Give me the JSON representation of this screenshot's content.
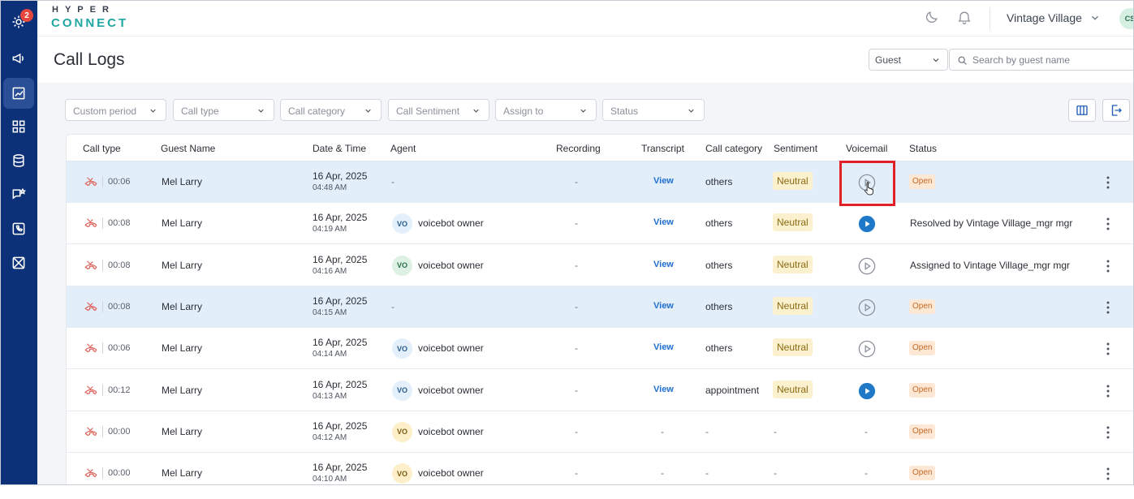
{
  "logo": {
    "top": "HYPER",
    "bottom": "CONNECT"
  },
  "sidebar": {
    "badge_count": "2",
    "items": [
      {
        "icon": "settings-cog-icon"
      },
      {
        "icon": "megaphone-icon"
      },
      {
        "icon": "reports-icon"
      },
      {
        "icon": "grid-icon"
      },
      {
        "icon": "database-icon"
      },
      {
        "icon": "chat-star-icon"
      },
      {
        "icon": "phone-icon"
      },
      {
        "icon": "mail-box-icon"
      }
    ]
  },
  "header": {
    "property": "Vintage Village",
    "user_initials": "CS"
  },
  "page": {
    "title": "Call Logs",
    "search_scope": "Guest",
    "search_placeholder": "Search by guest name"
  },
  "filters": [
    "Custom period",
    "Call type",
    "Call category",
    "Call Sentiment",
    "Assign to",
    "Status"
  ],
  "table": {
    "columns": [
      "Call type",
      "Guest Name",
      "Date & Time",
      "Agent",
      "Recording",
      "Transcript",
      "Call category",
      "Sentiment",
      "Voicemail",
      "Status"
    ],
    "rows": [
      {
        "duration": "00:06",
        "guest": "Mel Larry",
        "date": "16 Apr, 2025",
        "time": "04:48 AM",
        "agent_initials": "",
        "agent": "-",
        "recording": "-",
        "transcript": "View",
        "category": "others",
        "sentiment": "Neutral",
        "voicemail": "outline",
        "status": "Open",
        "status_type": "pill",
        "highlight": true
      },
      {
        "duration": "00:08",
        "guest": "Mel Larry",
        "date": "16 Apr, 2025",
        "time": "04:19 AM",
        "agent_initials": "VO",
        "agent": "voicebot owner",
        "agent_color": "blue",
        "recording": "-",
        "transcript": "View",
        "category": "others",
        "sentiment": "Neutral",
        "voicemail": "filled",
        "status": "Resolved by Vintage Village_mgr mgr",
        "status_type": "text",
        "highlight": false
      },
      {
        "duration": "00:08",
        "guest": "Mel Larry",
        "date": "16 Apr, 2025",
        "time": "04:16 AM",
        "agent_initials": "VO",
        "agent": "voicebot owner",
        "agent_color": "green",
        "recording": "-",
        "transcript": "View",
        "category": "others",
        "sentiment": "Neutral",
        "voicemail": "outline",
        "status": "Assigned to Vintage Village_mgr mgr",
        "status_type": "text",
        "highlight": false
      },
      {
        "duration": "00:08",
        "guest": "Mel Larry",
        "date": "16 Apr, 2025",
        "time": "04:15 AM",
        "agent_initials": "",
        "agent": "-",
        "recording": "-",
        "transcript": "View",
        "category": "others",
        "sentiment": "Neutral",
        "voicemail": "outline",
        "status": "Open",
        "status_type": "pill",
        "highlight": true
      },
      {
        "duration": "00:06",
        "guest": "Mel Larry",
        "date": "16 Apr, 2025",
        "time": "04:14 AM",
        "agent_initials": "VO",
        "agent": "voicebot owner",
        "agent_color": "blue",
        "recording": "-",
        "transcript": "View",
        "category": "others",
        "sentiment": "Neutral",
        "voicemail": "outline",
        "status": "Open",
        "status_type": "pill",
        "highlight": false
      },
      {
        "duration": "00:12",
        "guest": "Mel Larry",
        "date": "16 Apr, 2025",
        "time": "04:13 AM",
        "agent_initials": "VO",
        "agent": "voicebot owner",
        "agent_color": "blue",
        "recording": "-",
        "transcript": "View",
        "category": "appointment",
        "sentiment": "Neutral",
        "voicemail": "filled",
        "status": "Open",
        "status_type": "pill",
        "highlight": false
      },
      {
        "duration": "00:00",
        "guest": "Mel Larry",
        "date": "16 Apr, 2025",
        "time": "04:12 AM",
        "agent_initials": "VO",
        "agent": "voicebot owner",
        "agent_color": "yellow",
        "recording": "-",
        "transcript": "-",
        "category": "-",
        "sentiment": "-",
        "voicemail": "none",
        "status": "Open",
        "status_type": "pill",
        "highlight": false
      },
      {
        "duration": "00:00",
        "guest": "Mel Larry",
        "date": "16 Apr, 2025",
        "time": "04:10 AM",
        "agent_initials": "VO",
        "agent": "voicebot owner",
        "agent_color": "yellow",
        "recording": "-",
        "transcript": "-",
        "category": "-",
        "sentiment": "-",
        "voicemail": "none",
        "status": "Open",
        "status_type": "pill",
        "highlight": false
      }
    ]
  },
  "colors": {
    "sidebar": "#0d3178",
    "accent": "#1f6fd1",
    "highlight_row": "#e3eefb",
    "annotation": "#e02128"
  }
}
